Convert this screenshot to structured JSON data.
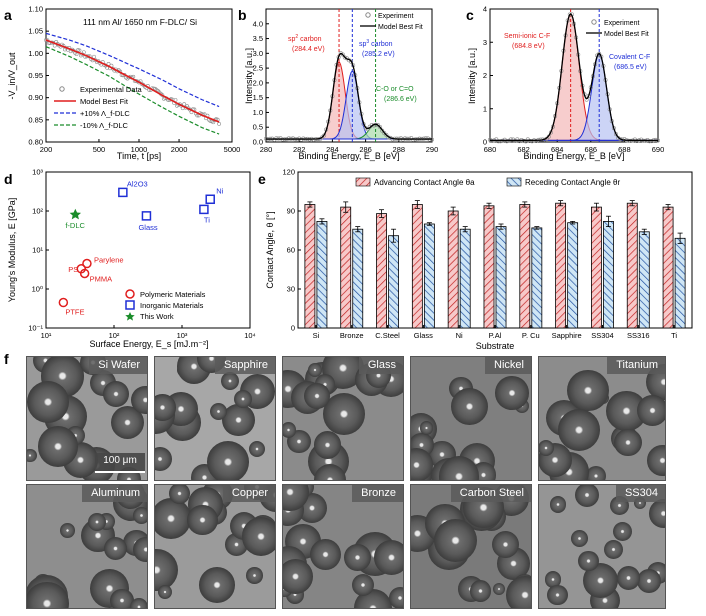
{
  "panels": {
    "a": {
      "letter": "a"
    },
    "b": {
      "letter": "b"
    },
    "c": {
      "letter": "c"
    },
    "d": {
      "letter": "d"
    },
    "e": {
      "letter": "e"
    },
    "f": {
      "letter": "f"
    }
  },
  "colors": {
    "red": "#e01e1e",
    "blue": "#1f2fd6",
    "green": "#1a8c2a",
    "gray": "#777777",
    "redfill": "#f4b8b8",
    "bluefill": "#b6c2f2",
    "greenfill": "#a9dba9"
  },
  "chart_data": [
    {
      "id": "a",
      "type": "line",
      "title": "111 nm Al/ 1650 nm F-DLC/ Si",
      "xlabel": "Time, t [ps]",
      "ylabel": "-V_in/V_out",
      "xscale": "log",
      "xlim": [
        200,
        5000
      ],
      "ylim": [
        0.8,
        1.1
      ],
      "xticks": [
        200,
        500,
        1000,
        2000,
        5000
      ],
      "xticklabels": [
        "200",
        "500",
        "1000",
        "2000",
        "5000"
      ],
      "yticks": [
        0.8,
        0.85,
        0.9,
        0.95,
        1.0,
        1.05,
        1.1
      ],
      "yticklabels": [
        "0.80",
        "0.85",
        "0.90",
        "0.95",
        "1.00",
        "1.05",
        "1.10"
      ],
      "legend": [
        "Experimental Data",
        "Model Best Fit",
        "+10% Λ_f-DLC",
        "-10% Λ_f-DLC"
      ],
      "series": [
        {
          "name": "Model Best Fit",
          "style": "solid",
          "x": [
            200,
            300,
            400,
            600,
            800,
            1000,
            1500,
            2000,
            3000,
            4000
          ],
          "y": [
            1.03,
            1.01,
            0.995,
            0.97,
            0.95,
            0.935,
            0.905,
            0.885,
            0.86,
            0.845
          ]
        },
        {
          "name": "+10% Λ_f-DLC",
          "style": "dash",
          "x": [
            200,
            300,
            400,
            600,
            800,
            1000,
            1500,
            2000,
            3000,
            4000
          ],
          "y": [
            1.045,
            1.03,
            1.017,
            0.995,
            0.978,
            0.965,
            0.94,
            0.92,
            0.895,
            0.88
          ]
        },
        {
          "name": "-10% Λ_f-DLC",
          "style": "dash",
          "x": [
            200,
            300,
            400,
            600,
            800,
            1000,
            1500,
            2000,
            3000,
            4000
          ],
          "y": [
            1.015,
            0.993,
            0.975,
            0.948,
            0.925,
            0.908,
            0.878,
            0.858,
            0.832,
            0.818
          ]
        }
      ]
    },
    {
      "id": "b",
      "type": "line",
      "xlabel": "Binding Energy, E_B [eV]",
      "ylabel": "Intensity [a.u.]",
      "xlim": [
        280,
        290
      ],
      "ylim": [
        0,
        4.5
      ],
      "xticks": [
        280,
        282,
        284,
        286,
        288,
        290
      ],
      "xticklabels": [
        "280",
        "282",
        "284",
        "286",
        "288",
        "290"
      ],
      "yticks": [
        0,
        0.5,
        1.0,
        1.5,
        2.0,
        2.5,
        3.0,
        3.5,
        4.0
      ],
      "yticklabels": [
        "0.0",
        "0.5",
        "1.0",
        "1.5",
        "2.0",
        "2.5",
        "3.0",
        "3.5",
        "4.0"
      ],
      "legend": [
        "Experiment",
        "Model Best Fit"
      ],
      "baseline": 0.1,
      "peaks": [
        {
          "label": "sp² carbon (284.4 eV)",
          "center": 284.4,
          "height": 2.6,
          "width": 0.55
        },
        {
          "label": "sp³ carbon (285.2 eV)",
          "center": 285.2,
          "height": 2.3,
          "width": 0.55
        },
        {
          "label": "C-O or C=O (286.6 eV)",
          "center": 286.6,
          "height": 0.5,
          "width": 0.6
        }
      ]
    },
    {
      "id": "c",
      "type": "line",
      "xlabel": "Binding Energy, E_B [eV]",
      "ylabel": "Intensity [a.u.]",
      "xlim": [
        680,
        690
      ],
      "ylim": [
        0,
        4
      ],
      "xticks": [
        680,
        682,
        684,
        686,
        688,
        690
      ],
      "xticklabels": [
        "680",
        "682",
        "684",
        "686",
        "688",
        "690"
      ],
      "yticks": [
        0,
        1,
        2,
        3,
        4
      ],
      "yticklabels": [
        "0",
        "1",
        "2",
        "3",
        "4"
      ],
      "legend": [
        "Experiment",
        "Model Best Fit"
      ],
      "baseline": 0.05,
      "peaks": [
        {
          "label": "Semi-ionic C-F (684.8 eV)",
          "center": 684.8,
          "height": 3.8,
          "width": 0.75
        },
        {
          "label": "Covalent C-F (686.5 eV)",
          "center": 686.5,
          "height": 2.6,
          "width": 0.65
        }
      ]
    },
    {
      "id": "d",
      "type": "scatter",
      "xlabel": "Surface Energy, E_s [mJ.m⁻²]",
      "ylabel": "Young's Modulus, E [GPa]",
      "xscale": "log",
      "yscale": "log",
      "xlim": [
        10,
        10000
      ],
      "ylim": [
        0.1,
        1000
      ],
      "xticks": [
        10,
        100,
        1000,
        10000
      ],
      "yticks": [
        0.1,
        1,
        10,
        100,
        1000
      ],
      "xticklabels": [
        "10¹",
        "10²",
        "10³",
        "10⁴"
      ],
      "yticklabels": [
        "10⁻¹",
        "10⁰",
        "10¹",
        "10²",
        "10³"
      ],
      "legend": [
        "Polymeric Materials",
        "Inorganic Materials",
        "This Work"
      ],
      "points": [
        {
          "label": "Al2O3",
          "group": "Inorganic Materials",
          "x": 135,
          "y": 300
        },
        {
          "label": "Glass",
          "group": "Inorganic Materials",
          "x": 300,
          "y": 75
        },
        {
          "label": "Ni",
          "group": "Inorganic Materials",
          "x": 2600,
          "y": 200
        },
        {
          "label": "Ti",
          "group": "Inorganic Materials",
          "x": 2100,
          "y": 110
        },
        {
          "label": "f-DLC",
          "group": "This Work",
          "x": 27,
          "y": 80
        },
        {
          "label": "Parylene",
          "group": "Polymeric Materials",
          "x": 40,
          "y": 4.5
        },
        {
          "label": "PS",
          "group": "Polymeric Materials",
          "x": 33,
          "y": 3.3
        },
        {
          "label": "PMMA",
          "group": "Polymeric Materials",
          "x": 37,
          "y": 2.5
        },
        {
          "label": "PTFE",
          "group": "Polymeric Materials",
          "x": 18,
          "y": 0.45
        }
      ]
    },
    {
      "id": "e",
      "type": "bar",
      "xlabel": "Substrate",
      "ylabel": "Contact Angle, θ [°]",
      "ylim": [
        0,
        120
      ],
      "yticks": [
        0,
        30,
        60,
        90,
        120
      ],
      "yticklabels": [
        "0",
        "30",
        "60",
        "90",
        "120"
      ],
      "categories": [
        "Si",
        "Bronze",
        "C.Steel",
        "Glass",
        "Ni",
        "P.Al",
        "P. Cu",
        "Sapphire",
        "SS304",
        "SS316",
        "Ti"
      ],
      "series": [
        {
          "name": "Advancing Contact Angle θa",
          "values": [
            95,
            93,
            88,
            95,
            90,
            94,
            95,
            96,
            93,
            96,
            93
          ],
          "errors": [
            2,
            4,
            3,
            3,
            3,
            2,
            2,
            2,
            3,
            2,
            2
          ]
        },
        {
          "name": "Receding Contact Angle θr",
          "values": [
            82,
            76,
            71,
            80,
            76,
            78,
            77,
            81,
            82,
            74,
            69
          ],
          "errors": [
            2,
            2,
            5,
            1,
            2,
            2,
            1,
            1,
            4,
            2,
            4
          ]
        }
      ]
    }
  ],
  "micrographs": {
    "scale_bar": "100 μm",
    "tiles": [
      {
        "label": "Si Wafer",
        "tone": "#9a9a9a"
      },
      {
        "label": "Sapphire",
        "tone": "#a7a7a7"
      },
      {
        "label": "Glass",
        "tone": "#8b8b8b"
      },
      {
        "label": "Nickel",
        "tone": "#7f7f7f"
      },
      {
        "label": "Titanium",
        "tone": "#8c8c8c"
      },
      {
        "label": "Aluminum",
        "tone": "#8e8e8e"
      },
      {
        "label": "Copper",
        "tone": "#9b9b9b"
      },
      {
        "label": "Bronze",
        "tone": "#858585"
      },
      {
        "label": "Carbon Steel",
        "tone": "#7a7a7a"
      },
      {
        "label": "SS304",
        "tone": "#959595"
      }
    ]
  }
}
